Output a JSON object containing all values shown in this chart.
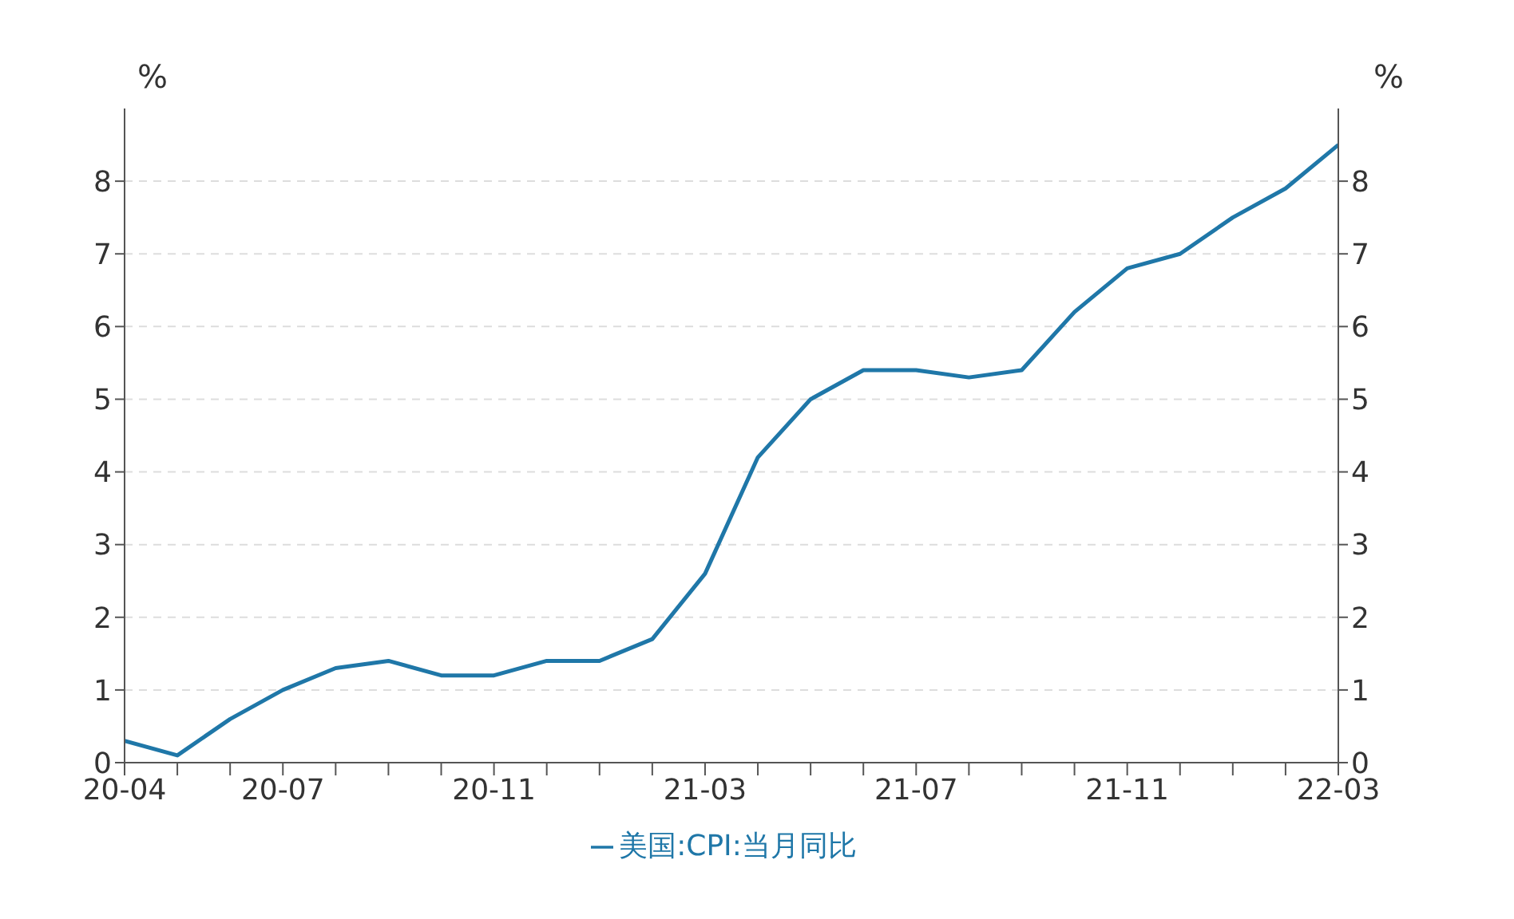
{
  "chart_data": {
    "type": "line",
    "categories": [
      "20-04",
      null,
      null,
      "20-07",
      null,
      null,
      null,
      "20-11",
      null,
      null,
      null,
      "21-03",
      null,
      null,
      null,
      "21-07",
      null,
      null,
      null,
      "21-11",
      null,
      null,
      null,
      "22-03"
    ],
    "series": [
      {
        "name": "美国:CPI:当月同比",
        "color": "#1f77a8",
        "values": [
          0.3,
          0.1,
          0.6,
          1.0,
          1.3,
          1.4,
          1.2,
          1.2,
          1.4,
          1.4,
          1.7,
          2.6,
          4.2,
          5.0,
          5.4,
          5.4,
          5.3,
          5.4,
          6.2,
          6.8,
          7.0,
          7.5,
          7.9,
          8.5
        ]
      }
    ],
    "ylabel": "%",
    "y2label": "%",
    "ylim": [
      0,
      9
    ],
    "yticks": [
      0,
      1,
      2,
      3,
      4,
      5,
      6,
      7,
      8
    ],
    "y2lim": [
      0,
      9
    ],
    "y2ticks": [
      0,
      1,
      2,
      3,
      4,
      5,
      6,
      7,
      8
    ],
    "grid": "y",
    "legend": "bottom",
    "marker": "none",
    "line_style": "solid"
  }
}
